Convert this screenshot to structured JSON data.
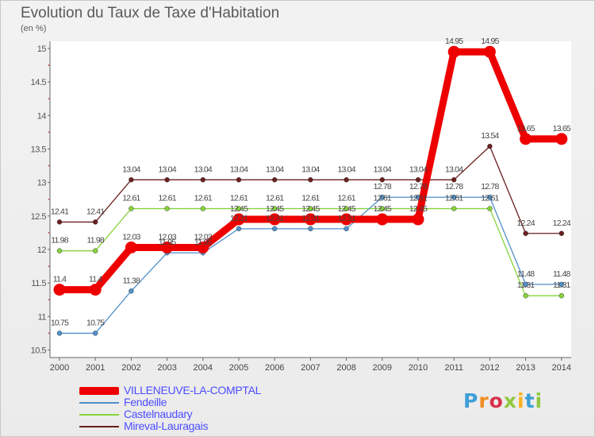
{
  "header": {
    "title": "Evolution du Taux de Taxe d'Habitation",
    "subtitle": "(en %)"
  },
  "logo": {
    "text": "Proxiti",
    "colors": [
      "#3d9fd8",
      "#f08c1e",
      "#d8324a",
      "#8fc73e",
      "#f7b21e",
      "#3d9fd8",
      "#8fc73e"
    ]
  },
  "chart_data": {
    "type": "line",
    "x": [
      "2000",
      "2001",
      "2002",
      "2003",
      "2004",
      "2005",
      "2006",
      "2007",
      "2008",
      "2009",
      "2010",
      "2011",
      "2012",
      "2013",
      "2014"
    ],
    "ylim": [
      10.5,
      15
    ],
    "yticks": [
      "10.5",
      "11",
      "11.5",
      "12",
      "12.5",
      "13",
      "13.5",
      "14",
      "14.5",
      "15"
    ],
    "grid": false,
    "legend_position": "bottom-left",
    "series": [
      {
        "name": "Mireval-Lauragais",
        "color": "#6b1e1e",
        "values": [
          12.41,
          12.41,
          13.04,
          13.04,
          13.04,
          13.04,
          13.04,
          13.04,
          13.04,
          13.04,
          13.04,
          13.04,
          13.54,
          12.24,
          12.24
        ],
        "labels": [
          "12.41",
          "12.41",
          "13.04",
          "13.04",
          "13.04",
          "13.04",
          "13.04",
          "13.04",
          "13.04",
          "13.04",
          "13.04",
          "13.04",
          "13.54",
          "12.24",
          "12.24"
        ]
      },
      {
        "name": "Castelnaudary",
        "color": "#86d33d",
        "values": [
          11.98,
          11.98,
          12.61,
          12.61,
          12.61,
          12.61,
          12.61,
          12.61,
          12.61,
          12.61,
          12.61,
          12.61,
          12.61,
          11.31,
          11.31
        ],
        "labels": [
          "11.98",
          "11.98",
          "12.61",
          "12.61",
          "12.61",
          "12.61",
          "12.61",
          "12.61",
          "12.61",
          "12.61",
          "12.61",
          "12.61",
          "12.61",
          "11.31",
          "11.31"
        ]
      },
      {
        "name": "Fendeille",
        "color": "#4f8fc9",
        "values": [
          10.75,
          10.75,
          11.38,
          11.95,
          11.95,
          12.31,
          12.31,
          12.31,
          12.31,
          12.78,
          12.78,
          12.78,
          12.78,
          11.48,
          11.48
        ],
        "labels": [
          "10.75",
          "10.75",
          "11.38",
          "11.95",
          "11.95",
          "12.31",
          "12.31",
          "12.31",
          "12.31",
          "12.78",
          "12.78",
          "12.78",
          "12.78",
          "11.48",
          "11.48"
        ]
      },
      {
        "name": "VILLENEUVE-LA-COMPTAL",
        "color": "#ee0000",
        "values": [
          11.4,
          11.4,
          12.03,
          12.03,
          12.03,
          12.45,
          12.45,
          12.45,
          12.45,
          12.45,
          12.45,
          14.95,
          14.95,
          13.65,
          13.65
        ],
        "labels": [
          "11.4",
          "11.4",
          "12.03",
          "12.03",
          "12.03",
          "12.45",
          "12.45",
          "12.45",
          "12.45",
          "12.45",
          "12.45",
          "14.95",
          "14.95",
          "13.65",
          "13.65"
        ]
      }
    ],
    "legend": [
      {
        "name": "VILLENEUVE-LA-COMPTAL",
        "color": "#ee0000",
        "text_color": "#4d4dff",
        "thick": true
      },
      {
        "name": "Fendeille",
        "color": "#4f8fc9",
        "text_color": "#4d4dff",
        "thick": false
      },
      {
        "name": "Castelnaudary",
        "color": "#86d33d",
        "text_color": "#4d4dff",
        "thick": false
      },
      {
        "name": "Mireval-Lauragais",
        "color": "#6b1e1e",
        "text_color": "#4d4dff",
        "thick": false
      }
    ]
  }
}
